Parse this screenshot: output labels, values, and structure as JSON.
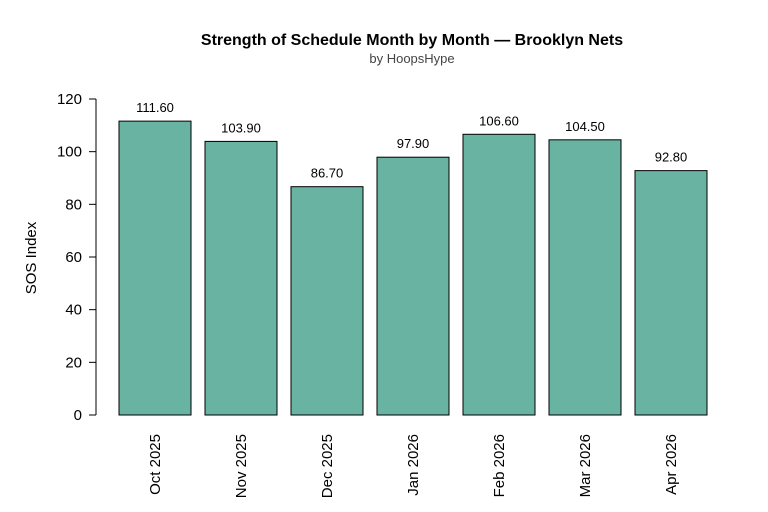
{
  "chart_data": {
    "type": "bar",
    "title": "Strength of Schedule Month by Month — Brooklyn Nets",
    "subtitle": "by HoopsHype",
    "xlabel": "",
    "ylabel": "SOS Index",
    "categories": [
      "Oct 2025",
      "Nov 2025",
      "Dec 2025",
      "Jan 2026",
      "Feb 2026",
      "Mar 2026",
      "Apr 2026"
    ],
    "values": [
      111.6,
      103.9,
      86.7,
      97.9,
      106.6,
      104.5,
      92.8
    ],
    "value_labels": [
      "111.60",
      "103.90",
      "86.70",
      "97.90",
      "106.60",
      "104.50",
      "92.80"
    ],
    "ylim": [
      0,
      120
    ],
    "yticks": [
      "0",
      "20",
      "40",
      "60",
      "80",
      "100",
      "120"
    ],
    "grid": false,
    "bar_color": "#69b3a2",
    "bar_edge_color": "#000000"
  }
}
